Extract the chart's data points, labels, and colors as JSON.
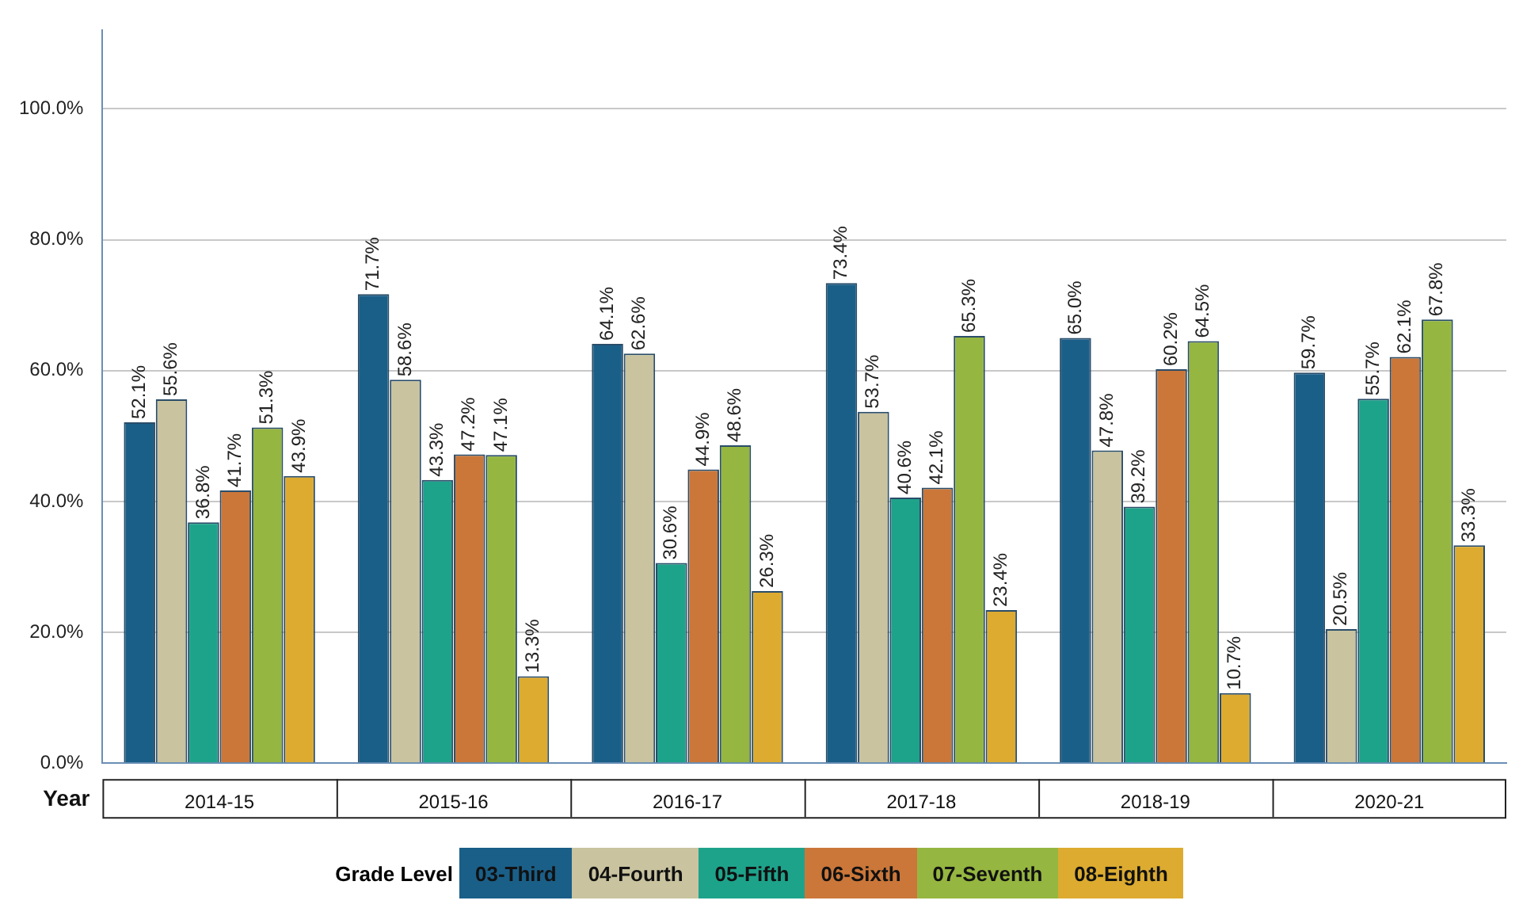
{
  "chart_data": {
    "type": "bar",
    "xlabel": "Year",
    "legend_title": "Grade Level",
    "legend": "bottom",
    "grid": "y",
    "categories": [
      "2014-15",
      "2015-16",
      "2016-17",
      "2017-18",
      "2018-19",
      "2020-21"
    ],
    "ylim": [
      0,
      112
    ],
    "yticks": [
      {
        "value": 0,
        "label": "0.0%"
      },
      {
        "value": 20,
        "label": "20.0%"
      },
      {
        "value": 40,
        "label": "40.0%"
      },
      {
        "value": 60,
        "label": "60.0%"
      },
      {
        "value": 80,
        "label": "80.0%"
      },
      {
        "value": 100,
        "label": "100.0%"
      }
    ],
    "series": [
      {
        "name": "03-Third",
        "color": "#1a5f88",
        "values": [
          52.1,
          71.7,
          64.1,
          73.4,
          65.0,
          59.7
        ],
        "value_labels": [
          "52.1%",
          "71.7%",
          "64.1%",
          "73.4%",
          "65.0%",
          "59.7%"
        ]
      },
      {
        "name": "04-Fourth",
        "color": "#c9c39f",
        "values": [
          55.6,
          58.6,
          62.6,
          53.7,
          47.8,
          20.5
        ],
        "value_labels": [
          "55.6%",
          "58.6%",
          "62.6%",
          "53.7%",
          "47.8%",
          "20.5%"
        ]
      },
      {
        "name": "05-Fifth",
        "color": "#1ea38b",
        "values": [
          36.8,
          43.3,
          30.6,
          40.6,
          39.2,
          55.7
        ],
        "value_labels": [
          "36.8%",
          "43.3%",
          "30.6%",
          "40.6%",
          "39.2%",
          "55.7%"
        ]
      },
      {
        "name": "06-Sixth",
        "color": "#cb773a",
        "values": [
          41.7,
          47.2,
          44.9,
          42.1,
          60.2,
          62.1
        ],
        "value_labels": [
          "41.7%",
          "47.2%",
          "44.9%",
          "42.1%",
          "60.2%",
          "62.1%"
        ]
      },
      {
        "name": "07-Seventh",
        "color": "#95b640",
        "values": [
          51.3,
          47.1,
          48.6,
          65.3,
          64.5,
          67.8
        ],
        "value_labels": [
          "51.3%",
          "47.1%",
          "48.6%",
          "65.3%",
          "64.5%",
          "67.8%"
        ]
      },
      {
        "name": "08-Eighth",
        "color": "#dcab30",
        "values": [
          43.9,
          13.3,
          26.3,
          23.4,
          10.7,
          33.3
        ],
        "value_labels": [
          "43.9%",
          "13.3%",
          "26.3%",
          "23.4%",
          "10.7%",
          "33.3%"
        ]
      }
    ]
  }
}
